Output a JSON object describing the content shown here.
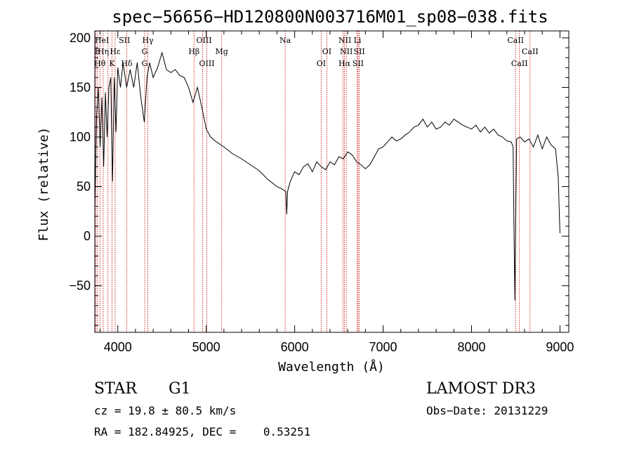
{
  "chart_data": {
    "type": "line",
    "title": "spec−56656−HD120800N003716M01_sp08−038.fits",
    "xlabel": "Wavelength (Å)",
    "ylabel": "Flux (relative)",
    "xlim": [
      3740,
      9100
    ],
    "ylim": [
      -97,
      207
    ],
    "x_ticks": [
      4000,
      5000,
      6000,
      7000,
      8000,
      9000
    ],
    "x_tick_labels": [
      "4000",
      "5000",
      "6000",
      "7000",
      "8000",
      "9000"
    ],
    "y_ticks": [
      -50,
      0,
      50,
      100,
      150,
      200
    ],
    "y_tick_labels": [
      "−50",
      "0",
      "50",
      "100",
      "150",
      "200"
    ],
    "grid": false,
    "series": [
      {
        "values": [
          [
            3740,
            30
          ],
          [
            3760,
            120
          ],
          [
            3780,
            150
          ],
          [
            3800,
            90
          ],
          [
            3820,
            140
          ],
          [
            3840,
            70
          ],
          [
            3860,
            145
          ],
          [
            3880,
            100
          ],
          [
            3900,
            150
          ],
          [
            3920,
            160
          ],
          [
            3940,
            55
          ],
          [
            3960,
            160
          ],
          [
            3980,
            105
          ],
          [
            4000,
            170
          ],
          [
            4030,
            150
          ],
          [
            4060,
            175
          ],
          [
            4100,
            150
          ],
          [
            4140,
            168
          ],
          [
            4180,
            150
          ],
          [
            4220,
            175
          ],
          [
            4260,
            140
          ],
          [
            4300,
            115
          ],
          [
            4330,
            160
          ],
          [
            4360,
            175
          ],
          [
            4400,
            160
          ],
          [
            4450,
            170
          ],
          [
            4500,
            185
          ],
          [
            4550,
            168
          ],
          [
            4600,
            165
          ],
          [
            4650,
            168
          ],
          [
            4700,
            162
          ],
          [
            4750,
            160
          ],
          [
            4800,
            150
          ],
          [
            4850,
            135
          ],
          [
            4900,
            150
          ],
          [
            4950,
            130
          ],
          [
            5000,
            108
          ],
          [
            5050,
            100
          ],
          [
            5100,
            96
          ],
          [
            5200,
            90
          ],
          [
            5300,
            83
          ],
          [
            5400,
            78
          ],
          [
            5500,
            72
          ],
          [
            5600,
            66
          ],
          [
            5700,
            57
          ],
          [
            5800,
            50
          ],
          [
            5850,
            48
          ],
          [
            5900,
            45
          ],
          [
            5910,
            22
          ],
          [
            5920,
            45
          ],
          [
            5950,
            55
          ],
          [
            6000,
            65
          ],
          [
            6050,
            62
          ],
          [
            6100,
            70
          ],
          [
            6150,
            73
          ],
          [
            6200,
            65
          ],
          [
            6250,
            75
          ],
          [
            6300,
            70
          ],
          [
            6350,
            67
          ],
          [
            6400,
            75
          ],
          [
            6450,
            72
          ],
          [
            6500,
            80
          ],
          [
            6550,
            78
          ],
          [
            6600,
            85
          ],
          [
            6650,
            82
          ],
          [
            6700,
            75
          ],
          [
            6750,
            72
          ],
          [
            6800,
            68
          ],
          [
            6850,
            72
          ],
          [
            6900,
            80
          ],
          [
            6950,
            88
          ],
          [
            7000,
            90
          ],
          [
            7050,
            95
          ],
          [
            7100,
            100
          ],
          [
            7150,
            96
          ],
          [
            7200,
            98
          ],
          [
            7250,
            102
          ],
          [
            7300,
            105
          ],
          [
            7350,
            110
          ],
          [
            7400,
            112
          ],
          [
            7450,
            118
          ],
          [
            7500,
            110
          ],
          [
            7550,
            115
          ],
          [
            7600,
            108
          ],
          [
            7650,
            110
          ],
          [
            7700,
            115
          ],
          [
            7750,
            112
          ],
          [
            7800,
            118
          ],
          [
            7850,
            115
          ],
          [
            7900,
            112
          ],
          [
            7950,
            110
          ],
          [
            8000,
            108
          ],
          [
            8050,
            112
          ],
          [
            8100,
            105
          ],
          [
            8150,
            110
          ],
          [
            8200,
            104
          ],
          [
            8250,
            108
          ],
          [
            8300,
            102
          ],
          [
            8350,
            100
          ],
          [
            8400,
            96
          ],
          [
            8450,
            95
          ],
          [
            8470,
            90
          ],
          [
            8480,
            10
          ],
          [
            8490,
            -65
          ],
          [
            8500,
            20
          ],
          [
            8510,
            98
          ],
          [
            8550,
            100
          ],
          [
            8600,
            95
          ],
          [
            8650,
            98
          ],
          [
            8700,
            90
          ],
          [
            8750,
            102
          ],
          [
            8800,
            88
          ],
          [
            8850,
            100
          ],
          [
            8900,
            92
          ],
          [
            8950,
            88
          ],
          [
            8980,
            60
          ],
          [
            9000,
            3
          ]
        ]
      }
    ],
    "annotations": {
      "line_wavelengths": [
        3750,
        3770,
        3798,
        3835,
        3889,
        3934,
        3970,
        4102,
        4304,
        4340,
        4862,
        4959,
        5007,
        5175,
        5893,
        6300,
        6364,
        6548,
        6563,
        6584,
        6707,
        6717,
        6731,
        8498,
        8542,
        8662
      ],
      "line_labels": [
        {
          "text": "HeI",
          "x": 3820,
          "row": 1
        },
        {
          "text": "SII",
          "x": 4075,
          "row": 1
        },
        {
          "text": "Hγ",
          "x": 4340,
          "row": 1
        },
        {
          "text": "OIII",
          "x": 4975,
          "row": 1
        },
        {
          "text": "Na",
          "x": 5893,
          "row": 1
        },
        {
          "text": "NII",
          "x": 6568,
          "row": 1
        },
        {
          "text": "Li",
          "x": 6710,
          "row": 1
        },
        {
          "text": "CaII",
          "x": 8498,
          "row": 1
        },
        {
          "text": "E",
          "x": 3770,
          "row": 2
        },
        {
          "text": "Hη",
          "x": 3835,
          "row": 2
        },
        {
          "text": "Hε",
          "x": 3970,
          "row": 2
        },
        {
          "text": "G",
          "x": 4304,
          "row": 2
        },
        {
          "text": "Hβ",
          "x": 4862,
          "row": 2
        },
        {
          "text": "Mg",
          "x": 5175,
          "row": 2
        },
        {
          "text": "OI",
          "x": 6364,
          "row": 2
        },
        {
          "text": "NII",
          "x": 6584,
          "row": 2
        },
        {
          "text": "SII",
          "x": 6731,
          "row": 2
        },
        {
          "text": "CaII",
          "x": 8662,
          "row": 2
        },
        {
          "text": "Hθ",
          "x": 3798,
          "row": 3
        },
        {
          "text": "K",
          "x": 3934,
          "row": 3
        },
        {
          "text": "Hδ",
          "x": 4102,
          "row": 3
        },
        {
          "text": "G",
          "x": 4304,
          "row": 3
        },
        {
          "text": "OIII",
          "x": 5007,
          "row": 3
        },
        {
          "text": "OI",
          "x": 6300,
          "row": 3
        },
        {
          "text": "Hα",
          "x": 6563,
          "row": 3
        },
        {
          "text": "SII",
          "x": 6717,
          "row": 3
        },
        {
          "text": "CaII",
          "x": 8542,
          "row": 3
        }
      ]
    }
  },
  "info": {
    "object_class": "STAR",
    "subclass": "G1",
    "survey": "LAMOST DR3",
    "cz_text": "cz = 19.8 ± 80.5 km/s",
    "obs_date_text": "Obs−Date: 20131229",
    "radec_text": "RA = 182.84925, DEC =    0.53251"
  },
  "colors": {
    "spectrum": "#000000",
    "line_markers": "#cc0000",
    "axes": "#000000",
    "background": "#ffffff"
  }
}
